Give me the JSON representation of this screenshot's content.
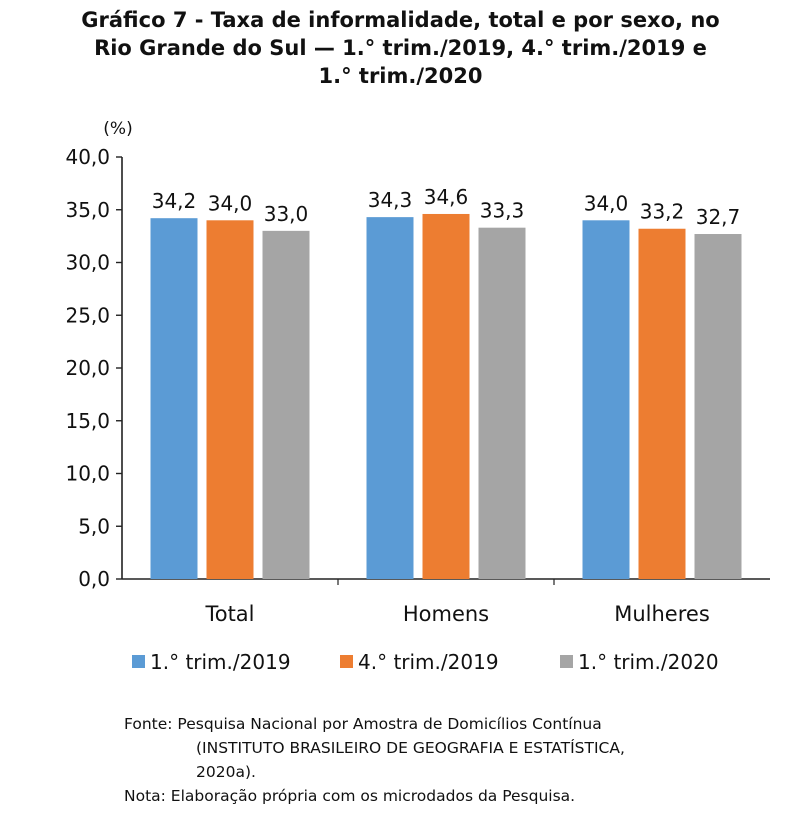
{
  "chart_data": {
    "type": "bar",
    "title_lines": [
      "Gráfico 7 - Taxa de informalidade, total e por sexo, no",
      "Rio Grande do Sul — 1.° trim./2019,  4.° trim./2019 e",
      "1.° trim./2020"
    ],
    "ylabel": "(%)",
    "ylim": [
      0,
      40
    ],
    "yticks": [
      "0,0",
      "5,0",
      "10,0",
      "15,0",
      "20,0",
      "25,0",
      "30,0",
      "35,0",
      "40,0"
    ],
    "categories": [
      "Total",
      "Homens",
      "Mulheres"
    ],
    "series": [
      {
        "name": "1.° trim./2019",
        "color": "#5B9BD5",
        "values": [
          34.2,
          34.3,
          34.0
        ],
        "labels": [
          "34,2",
          "34,3",
          "34,0"
        ]
      },
      {
        "name": "4.° trim./2019",
        "color": "#ED7D31",
        "values": [
          34.0,
          34.6,
          33.2
        ],
        "labels": [
          "34,0",
          "34,6",
          "33,2"
        ]
      },
      {
        "name": "1.° trim./2020",
        "color": "#A5A5A5",
        "values": [
          33.0,
          33.3,
          32.7
        ],
        "labels": [
          "33,0",
          "33,3",
          "32,7"
        ]
      }
    ],
    "grid": false,
    "legend": "bottom"
  },
  "source": {
    "line1": "Fonte: Pesquisa Nacional por Amostra de Domicílios Contínua",
    "line2": "(INSTITUTO BRASILEIRO DE GEOGRAFIA E ESTATÍSTICA,",
    "line3": "2020a).",
    "note": "Nota: Elaboração própria com os microdados da Pesquisa."
  }
}
